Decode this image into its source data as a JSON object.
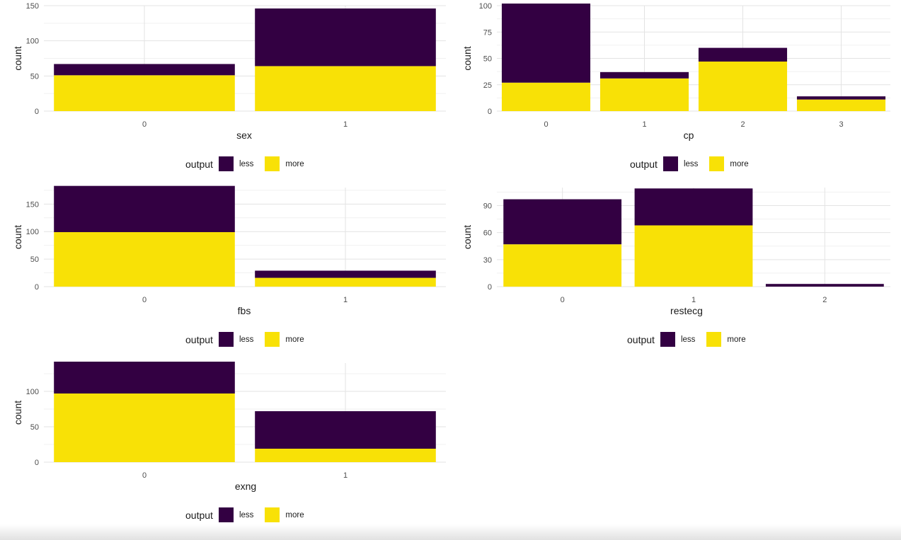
{
  "colors": {
    "less": "#330042",
    "more": "#f8e106"
  },
  "chart_data": [
    {
      "type": "bar",
      "stacked": true,
      "xlabel": "sex",
      "ylabel": "count",
      "categories": [
        "0",
        "1"
      ],
      "series": [
        {
          "name": "less",
          "values": [
            16,
            82
          ]
        },
        {
          "name": "more",
          "values": [
            51,
            64
          ]
        }
      ],
      "ylim": [
        0,
        150
      ],
      "yticks": [
        "0",
        "50",
        "100",
        "150"
      ],
      "legend": {
        "title": "output",
        "position": "bottom",
        "items": [
          "less",
          "more"
        ]
      }
    },
    {
      "type": "bar",
      "stacked": true,
      "xlabel": "cp",
      "ylabel": "count",
      "categories": [
        "0",
        "1",
        "2",
        "3"
      ],
      "series": [
        {
          "name": "less",
          "values": [
            75,
            6,
            13,
            3
          ]
        },
        {
          "name": "more",
          "values": [
            27,
            31,
            47,
            11
          ]
        }
      ],
      "ylim": [
        0,
        100
      ],
      "yticks": [
        "0",
        "25",
        "50",
        "75",
        "100"
      ],
      "legend": {
        "title": "output",
        "position": "bottom",
        "items": [
          "less",
          "more"
        ]
      }
    },
    {
      "type": "bar",
      "stacked": true,
      "xlabel": "fbs",
      "ylabel": "count",
      "categories": [
        "0",
        "1"
      ],
      "series": [
        {
          "name": "less",
          "values": [
            84,
            13
          ]
        },
        {
          "name": "more",
          "values": [
            99,
            16
          ]
        }
      ],
      "ylim": [
        0,
        180
      ],
      "yticks": [
        "0",
        "50",
        "100",
        "150"
      ],
      "legend": {
        "title": "output",
        "position": "bottom",
        "items": [
          "less",
          "more"
        ]
      }
    },
    {
      "type": "bar",
      "stacked": true,
      "xlabel": "restecg",
      "ylabel": "count",
      "categories": [
        "0",
        "1",
        "2"
      ],
      "series": [
        {
          "name": "less",
          "values": [
            50,
            41,
            3
          ]
        },
        {
          "name": "more",
          "values": [
            47,
            68,
            0
          ]
        }
      ],
      "ylim": [
        0,
        110
      ],
      "yticks": [
        "0",
        "30",
        "60",
        "90"
      ],
      "legend": {
        "title": "output",
        "position": "bottom",
        "items": [
          "less",
          "more"
        ]
      }
    },
    {
      "type": "bar",
      "stacked": true,
      "xlabel": "exng",
      "ylabel": "count",
      "categories": [
        "0",
        "1"
      ],
      "series": [
        {
          "name": "less",
          "values": [
            45,
            53
          ]
        },
        {
          "name": "more",
          "values": [
            97,
            19
          ]
        }
      ],
      "ylim": [
        0,
        140
      ],
      "yticks": [
        "0",
        "50",
        "100"
      ],
      "legend": {
        "title": "output",
        "position": "bottom",
        "items": [
          "less",
          "more"
        ]
      }
    }
  ]
}
